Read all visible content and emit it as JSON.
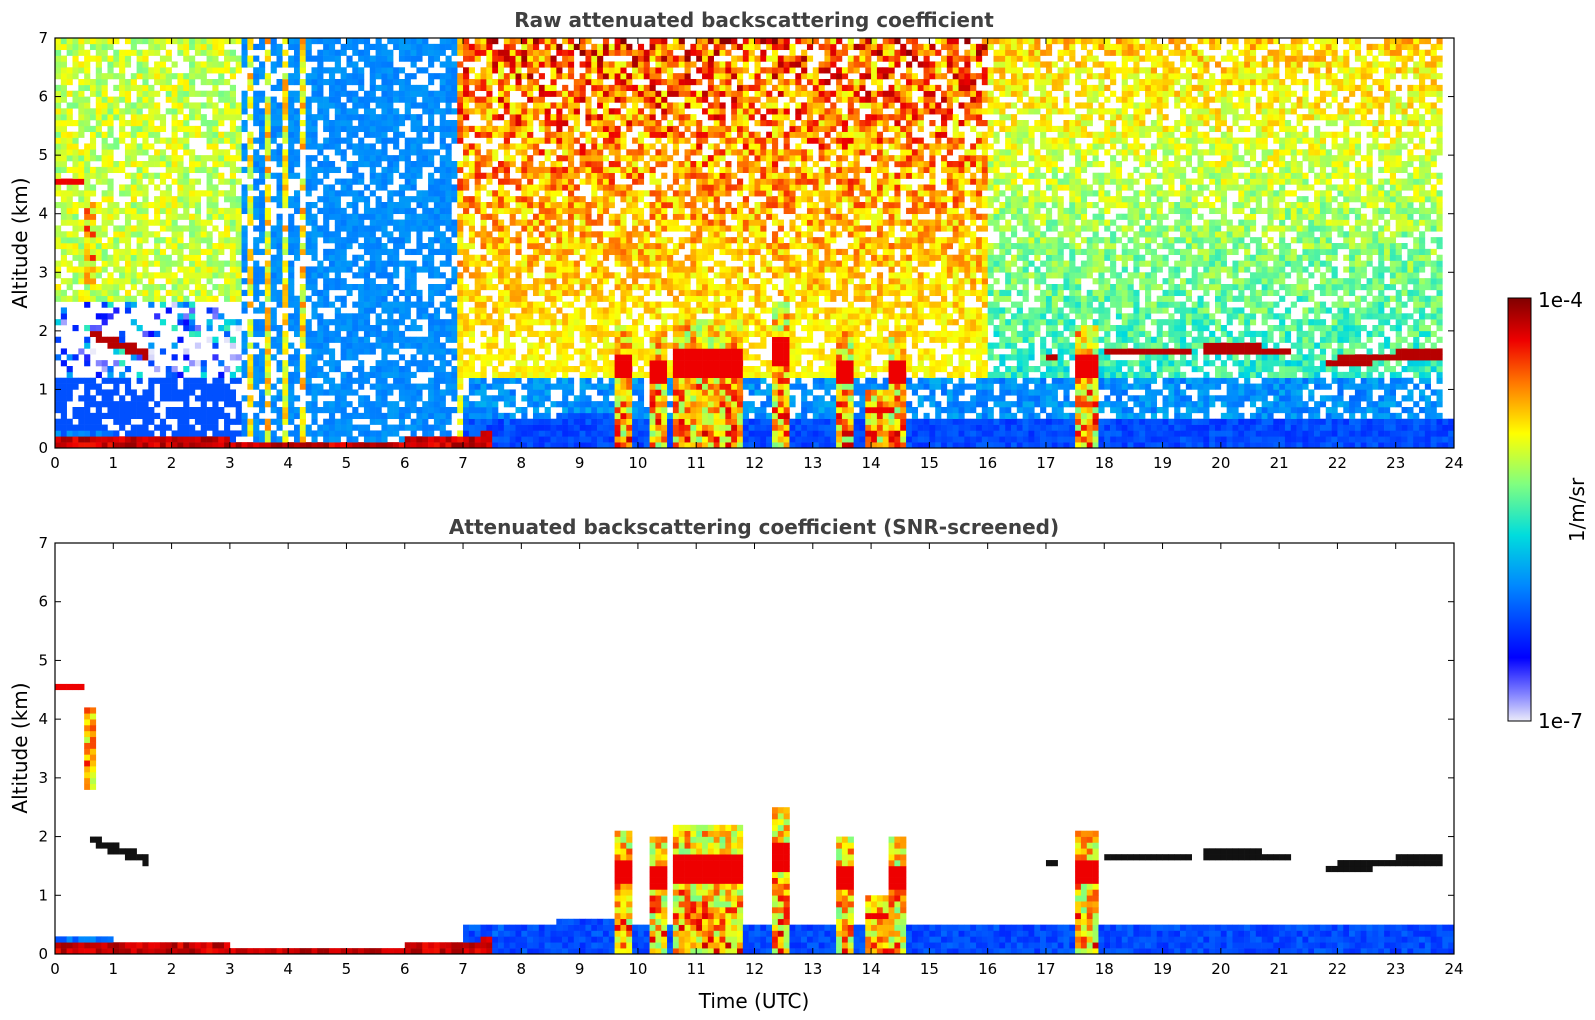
{
  "chart_data": [
    {
      "type": "heatmap",
      "title": "Raw attenuated backscattering coefficient",
      "xlabel": "",
      "ylabel": "Altitude (km)",
      "xlim": [
        0,
        24
      ],
      "ylim": [
        0,
        7
      ],
      "x_ticks": [
        "0",
        "1",
        "2",
        "3",
        "4",
        "5",
        "6",
        "7",
        "8",
        "9",
        "10",
        "11",
        "12",
        "13",
        "14",
        "15",
        "16",
        "17",
        "18",
        "19",
        "20",
        "21",
        "22",
        "23",
        "24"
      ],
      "y_ticks": [
        "0",
        "1",
        "2",
        "3",
        "4",
        "5",
        "6",
        "7"
      ],
      "features": [
        {
          "kind": "boundary_layer_top",
          "x": [
            0.0,
            1.0,
            2.0,
            3.0,
            4.0,
            5.0,
            6.0,
            7.0,
            8.0,
            9.0
          ],
          "y": [
            0.3,
            0.25,
            0.2,
            0.15,
            0.15,
            0.15,
            0.15,
            0.2,
            0.4,
            0.65
          ]
        },
        {
          "kind": "cloud_layer",
          "x": [
            0.6,
            1.6
          ],
          "y": [
            1.95,
            1.6
          ]
        },
        {
          "kind": "cloud_layer",
          "x": [
            18.0,
            19.5
          ],
          "y": [
            1.65,
            1.65
          ]
        },
        {
          "kind": "cloud_layer",
          "x": [
            19.7,
            21.2
          ],
          "y": [
            1.7,
            1.65
          ]
        },
        {
          "kind": "cloud_layer",
          "x": [
            21.8,
            23.8
          ],
          "y": [
            1.55,
            1.6
          ]
        },
        {
          "kind": "convective_column",
          "x": [
            9.6,
            9.9
          ],
          "ytop": 2.1
        },
        {
          "kind": "convective_column",
          "x": [
            10.2,
            11.8
          ],
          "ytop": 2.2
        },
        {
          "kind": "convective_column",
          "x": [
            12.3,
            12.6
          ],
          "ytop": 2.5
        },
        {
          "kind": "convective_column",
          "x": [
            13.5,
            14.6
          ],
          "ytop": 2.0
        },
        {
          "kind": "convective_column",
          "x": [
            17.6,
            17.9
          ],
          "ytop": 2.1
        },
        {
          "kind": "elevated_aerosol",
          "x": [
            0.5,
            0.7
          ],
          "ybottom": 2.8,
          "ytop": 4.2
        }
      ]
    },
    {
      "type": "heatmap",
      "title": "Attenuated backscattering coefficient (SNR-screened)",
      "xlabel": "Time (UTC)",
      "ylabel": "Altitude (km)",
      "xlim": [
        0,
        24
      ],
      "ylim": [
        0,
        7
      ],
      "x_ticks": [
        "0",
        "1",
        "2",
        "3",
        "4",
        "5",
        "6",
        "7",
        "8",
        "9",
        "10",
        "11",
        "12",
        "13",
        "14",
        "15",
        "16",
        "17",
        "18",
        "19",
        "20",
        "21",
        "22",
        "23",
        "24"
      ],
      "y_ticks": [
        "0",
        "1",
        "2",
        "3",
        "4",
        "5",
        "6",
        "7"
      ]
    }
  ],
  "colorbar": {
    "label": "1/m/sr",
    "max_label": "1e-4",
    "min_label": "1e-7",
    "scale": "log",
    "colormap": [
      "#ebebfa",
      "#0000ff",
      "#00bfff",
      "#40e0b0",
      "#c0ff40",
      "#ffe000",
      "#ff6000",
      "#e00000",
      "#800000"
    ]
  }
}
